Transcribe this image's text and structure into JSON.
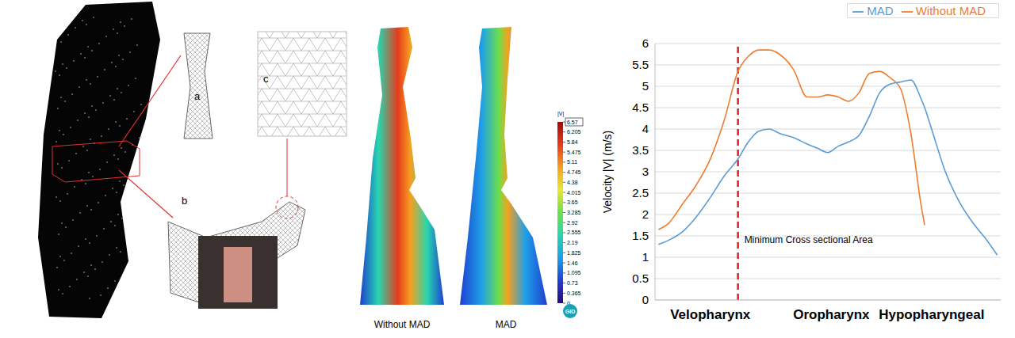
{
  "chart_data": {
    "type": "line",
    "y_label": "Velocity |V| (m/s)",
    "x": [
      1,
      4,
      8,
      12,
      16,
      20,
      24,
      27,
      30,
      33,
      36,
      40,
      44,
      47,
      50,
      53,
      56,
      59,
      62,
      65,
      68,
      71,
      74,
      77,
      78,
      80,
      84,
      88,
      92,
      96,
      99
    ],
    "series": [
      {
        "name": "Without MAD",
        "color": "#ed7d31",
        "values": [
          1.65,
          1.8,
          2.25,
          2.7,
          3.3,
          4.2,
          5.35,
          5.7,
          5.85,
          5.85,
          5.75,
          5.4,
          4.75,
          4.75,
          4.8,
          4.75,
          4.65,
          4.85,
          5.3,
          5.35,
          5.2,
          4.95,
          3.9,
          2.2,
          1.75,
          null,
          null,
          null,
          null,
          null,
          null
        ]
      },
      {
        "name": "MAD",
        "color": "#5b9bd5",
        "values": [
          1.3,
          1.4,
          1.6,
          1.95,
          2.4,
          2.9,
          3.3,
          3.7,
          3.95,
          4.0,
          3.9,
          3.8,
          3.65,
          3.55,
          3.45,
          3.6,
          3.7,
          3.85,
          4.3,
          4.85,
          5.05,
          5.1,
          5.15,
          4.7,
          4.5,
          4.0,
          3.0,
          2.3,
          1.8,
          1.4,
          1.05
        ]
      }
    ],
    "xlim": [
      0,
      100
    ],
    "xticks": [
      {
        "value": 16,
        "label": "Velopharynx"
      },
      {
        "value": 51,
        "label": "Oropharynx"
      },
      {
        "value": 80,
        "label": "Hypopharyngeal"
      }
    ],
    "ylim": [
      0,
      6
    ],
    "yticks": [
      0,
      0.5,
      1,
      1.5,
      2,
      2.5,
      3,
      3.5,
      4,
      4.5,
      5,
      5.5,
      6
    ],
    "grid": true,
    "legend": "top-right",
    "annotations": [
      {
        "text": "Minimum Cross sectional Area",
        "x": 24,
        "color": "#e02020",
        "line_style": "dashed"
      }
    ]
  },
  "mesh_panel": {
    "labels": [
      "a",
      "b",
      "c"
    ]
  },
  "contour_panel": {
    "labels": [
      "Without MAD",
      "MAD"
    ],
    "colorbar": {
      "title": "|V|",
      "range": [
        0,
        6.57
      ],
      "ticks": [
        6.57,
        6.205,
        5.84,
        5.475,
        5.11,
        4.745,
        4.38,
        4.015,
        3.65,
        3.285,
        2.92,
        2.555,
        2.19,
        1.825,
        1.46,
        1.095,
        0.73,
        0.365,
        0
      ]
    },
    "logo": "GiD"
  }
}
